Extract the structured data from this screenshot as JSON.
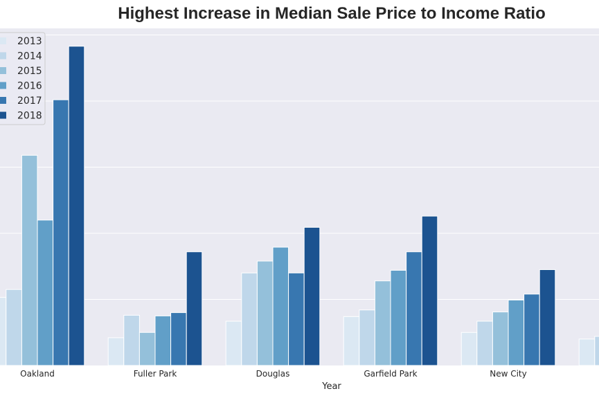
{
  "chart_data": {
    "type": "bar",
    "title": "Highest Increase in Median Sale Price to Income Ratio",
    "xlabel": "Year",
    "ylabel": "",
    "categories": [
      "Oakland",
      "Fuller Park",
      "Douglas",
      "Garfield Park",
      "New City",
      ""
    ],
    "series": [
      {
        "name": "2013",
        "color": "#dbe8f3",
        "values": [
          1.03,
          0.42,
          0.67,
          0.74,
          0.5,
          0.4
        ]
      },
      {
        "name": "2014",
        "color": "#bfd7ea",
        "values": [
          1.15,
          0.76,
          1.4,
          0.84,
          0.67,
          0.44
        ]
      },
      {
        "name": "2015",
        "color": "#94c0da",
        "values": [
          3.18,
          0.5,
          1.58,
          1.28,
          0.81,
          null
        ]
      },
      {
        "name": "2016",
        "color": "#619fc8",
        "values": [
          2.2,
          0.75,
          1.79,
          1.44,
          0.99,
          null
        ]
      },
      {
        "name": "2017",
        "color": "#3877b0",
        "values": [
          4.02,
          0.8,
          1.4,
          1.72,
          1.08,
          null
        ]
      },
      {
        "name": "2018",
        "color": "#1c5390",
        "values": [
          4.83,
          1.72,
          2.09,
          2.26,
          1.45,
          null
        ]
      }
    ],
    "ylim": [
      0,
      5.1
    ],
    "grid": true,
    "legend": "top-left",
    "background": "#eaeaf2"
  }
}
